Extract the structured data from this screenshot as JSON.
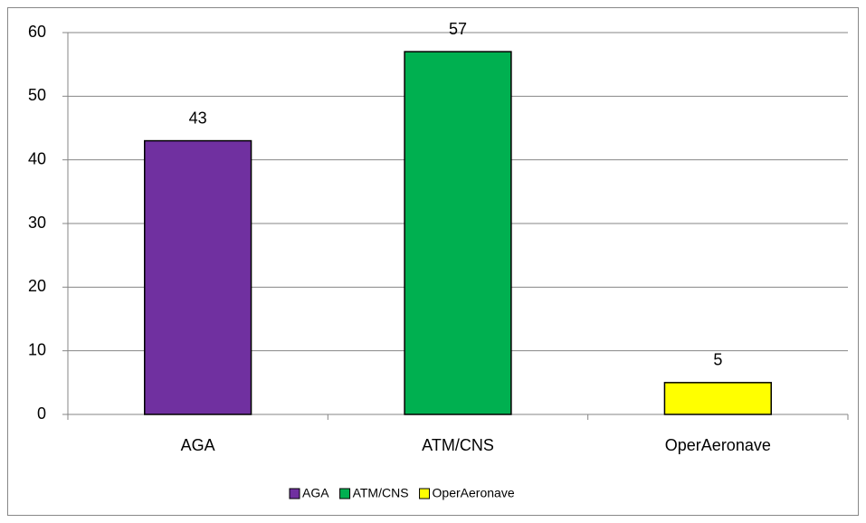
{
  "chart_data": {
    "type": "bar",
    "categories": [
      "AGA",
      "ATM/CNS",
      "OperAeronave"
    ],
    "values": [
      43,
      57,
      5
    ],
    "colors": [
      "#7030a0",
      "#00b050",
      "#ffff00"
    ],
    "ylim": [
      0,
      60
    ],
    "yticks": [
      0,
      10,
      20,
      30,
      40,
      50,
      60
    ],
    "grid": true,
    "legend": "bottom"
  }
}
